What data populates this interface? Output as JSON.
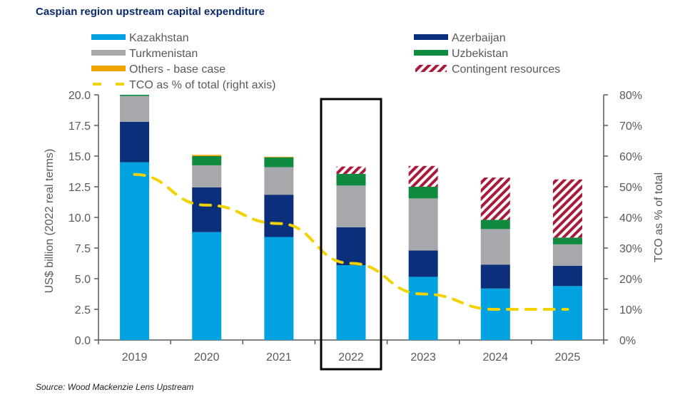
{
  "title": "Caspian region upstream capital expenditure",
  "source": "Source: Wood Mackenzie Lens Upstream",
  "chart_data": {
    "type": "bar",
    "stacked": true,
    "title": "Caspian region upstream capital expenditure",
    "categories": [
      "2019",
      "2020",
      "2021",
      "2022",
      "2023",
      "2024",
      "2025"
    ],
    "ylabel": "US$ billion (2022 real terms)",
    "ylim": [
      0,
      20
    ],
    "yticks": [
      "0.0",
      "2.5",
      "5.0",
      "7.5",
      "10.0",
      "12.5",
      "15.0",
      "17.5",
      "20.0"
    ],
    "y2label": "TCO as % of total",
    "y2lim": [
      0,
      80
    ],
    "y2ticks": [
      "0%",
      "10%",
      "20%",
      "30%",
      "40%",
      "50%",
      "60%",
      "70%",
      "80%"
    ],
    "series": [
      {
        "name": "Kazakhstan",
        "color": "#00a3e0",
        "values": [
          14.5,
          8.8,
          8.4,
          6.1,
          5.15,
          4.2,
          4.4
        ]
      },
      {
        "name": "Azerbaijan",
        "color": "#0b2f7a",
        "values": [
          3.3,
          3.65,
          3.45,
          3.1,
          2.15,
          1.95,
          1.65
        ]
      },
      {
        "name": "Turkmenistan",
        "color": "#a6a8ab",
        "values": [
          2.1,
          1.8,
          2.25,
          3.4,
          4.25,
          2.9,
          1.75
        ]
      },
      {
        "name": "Uzbekistan",
        "color": "#0f8a3e",
        "values": [
          0.1,
          0.75,
          0.8,
          0.95,
          0.95,
          0.75,
          0.55
        ]
      },
      {
        "name": "Others - base case",
        "color": "#f0a500",
        "values": [
          0,
          0.1,
          0.05,
          0,
          0,
          0,
          0
        ]
      },
      {
        "name": "Contingent resources",
        "color": "#a8193a",
        "pattern": "hatch",
        "values": [
          0,
          0,
          0,
          0.6,
          1.7,
          3.45,
          4.75
        ]
      }
    ],
    "line_series": {
      "name": "TCO as % of total (right axis)",
      "color": "#f2d200",
      "style": "dashed",
      "axis": "right",
      "values": [
        54,
        44,
        38,
        25,
        15,
        10,
        10
      ]
    },
    "highlight": "2022",
    "legend": {
      "placement": "top",
      "items": [
        {
          "label": "Kazakhstan",
          "color": "#00a3e0",
          "kind": "bar"
        },
        {
          "label": "Azerbaijan",
          "color": "#0b2f7a",
          "kind": "bar"
        },
        {
          "label": "Turkmenistan",
          "color": "#a6a8ab",
          "kind": "bar"
        },
        {
          "label": "Uzbekistan",
          "color": "#0f8a3e",
          "kind": "bar"
        },
        {
          "label": "Others - base case",
          "color": "#f0a500",
          "kind": "bar"
        },
        {
          "label": "Contingent resources",
          "color": "#a8193a",
          "kind": "hatch"
        },
        {
          "label": "TCO as % of total (right axis)",
          "color": "#f2d200",
          "kind": "dash"
        }
      ]
    },
    "grid": false
  }
}
